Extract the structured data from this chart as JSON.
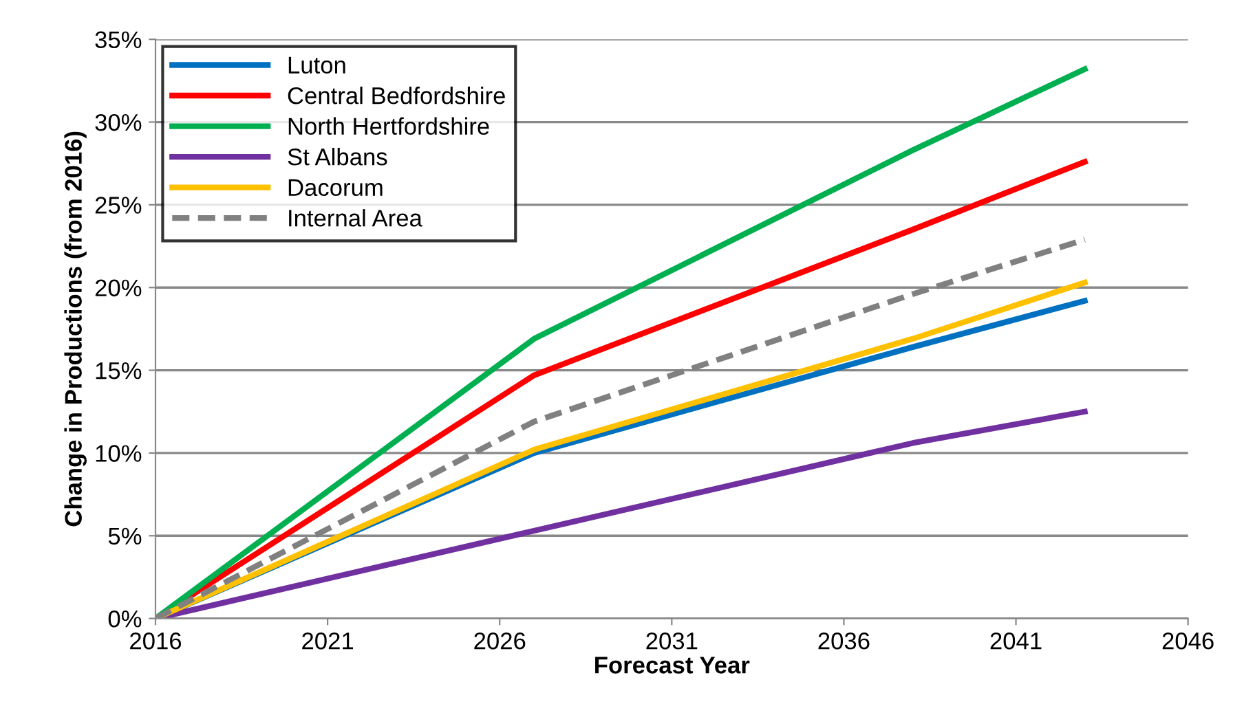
{
  "chart_data": {
    "type": "line",
    "xlabel": "Forecast Year",
    "ylabel": "Change in Productions (from 2016)",
    "x": [
      2016,
      2027,
      2038,
      2043
    ],
    "series": [
      {
        "name": "Luton",
        "color": "#0070c0",
        "values": [
          0,
          10.0,
          16.4,
          19.2
        ]
      },
      {
        "name": "Central Bedfordshire",
        "color": "#ff0000",
        "values": [
          0,
          14.7,
          23.5,
          27.6
        ]
      },
      {
        "name": "North Hertfordshire",
        "color": "#00b050",
        "values": [
          0,
          16.9,
          28.3,
          33.2
        ]
      },
      {
        "name": "St Albans",
        "color": "#7030a0",
        "values": [
          0,
          5.3,
          10.6,
          12.5
        ]
      },
      {
        "name": "Dacorum",
        "color": "#ffc000",
        "values": [
          0,
          10.2,
          16.9,
          20.3
        ]
      },
      {
        "name": "Internal Area",
        "color": "#808080",
        "values": [
          0,
          11.9,
          19.6,
          22.9
        ],
        "line_style": "dashed"
      }
    ],
    "xlim": [
      2016,
      2046
    ],
    "xticks": [
      2016,
      2021,
      2026,
      2031,
      2036,
      2041,
      2046
    ],
    "ylim": [
      0,
      35
    ],
    "yticks": [
      {
        "value": 0,
        "label": "0%"
      },
      {
        "value": 5,
        "label": "5%"
      },
      {
        "value": 10,
        "label": "10%"
      },
      {
        "value": 15,
        "label": "15%"
      },
      {
        "value": 20,
        "label": "20%"
      },
      {
        "value": 25,
        "label": "25%"
      },
      {
        "value": 30,
        "label": "30%"
      },
      {
        "value": 35,
        "label": "35%"
      }
    ],
    "grid": "y",
    "legend": "top left",
    "marker": "none"
  }
}
